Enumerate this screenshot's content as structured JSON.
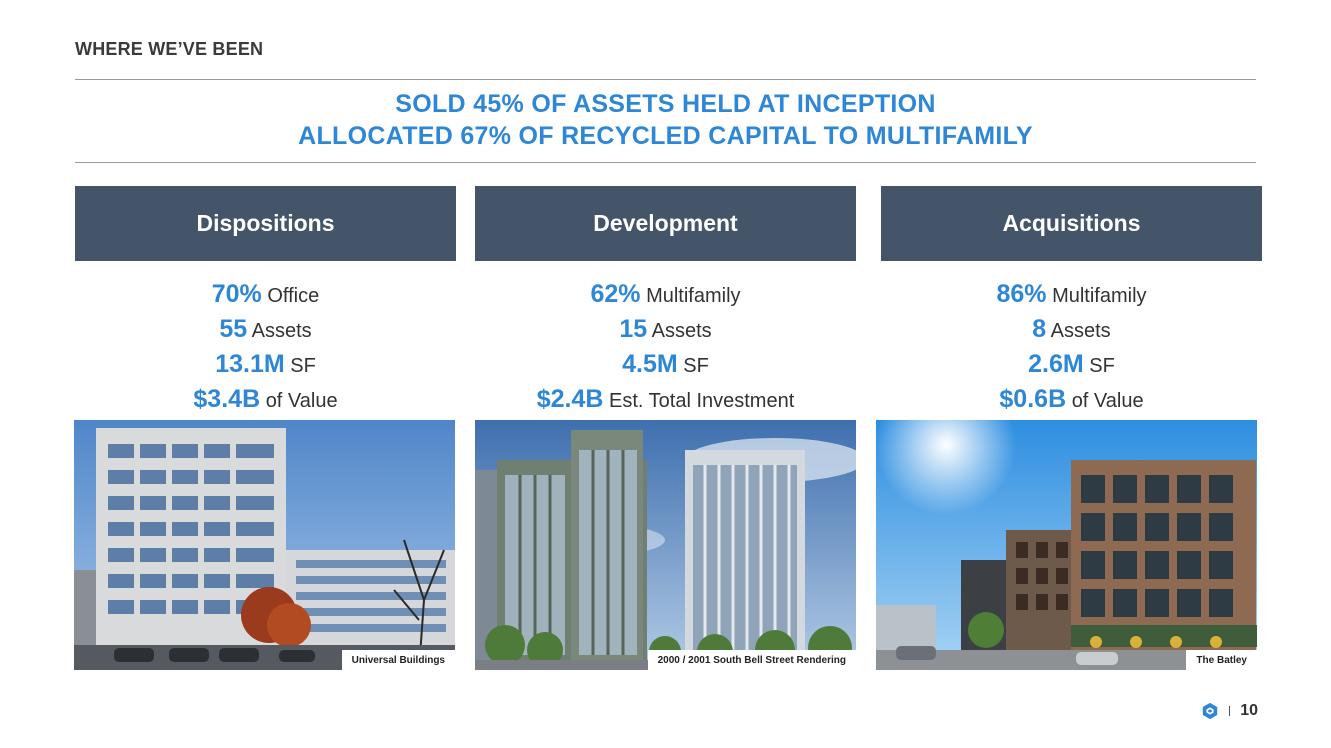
{
  "section_label": "WHERE WE’VE BEEN",
  "headline": {
    "line1": "SOLD 45% OF ASSETS HELD AT INCEPTION",
    "line2": "ALLOCATED 67% OF RECYCLED CAPITAL TO MULTIFAMILY"
  },
  "columns": [
    {
      "title": "Dispositions",
      "stats": [
        {
          "value": "70%",
          "label": "Office"
        },
        {
          "value": "55",
          "label": "Assets"
        },
        {
          "value": "13.1M",
          "label": "SF"
        },
        {
          "value": "$3.4B",
          "label": "of Value"
        }
      ],
      "caption": "Universal Buildings"
    },
    {
      "title": "Development",
      "stats": [
        {
          "value": "62%",
          "label": "Multifamily"
        },
        {
          "value": "15",
          "label": "Assets"
        },
        {
          "value": "4.5M",
          "label": "SF"
        },
        {
          "value": "$2.4B",
          "label": "Est. Total Investment"
        }
      ],
      "caption": "2000 / 2001 South Bell Street Rendering"
    },
    {
      "title": "Acquisitions",
      "stats": [
        {
          "value": "86%",
          "label": "Multifamily"
        },
        {
          "value": "8",
          "label": "Assets"
        },
        {
          "value": "2.6M",
          "label": "SF"
        },
        {
          "value": "$0.6B",
          "label": "of Value"
        }
      ],
      "caption": "The Batley"
    }
  ],
  "footer": {
    "page_number": "10",
    "logo_icon": "hexagon-logo-icon"
  },
  "colors": {
    "accent_blue": "#2d87d6",
    "header_slate": "#445469",
    "rule_gray": "#9a9a9a"
  }
}
